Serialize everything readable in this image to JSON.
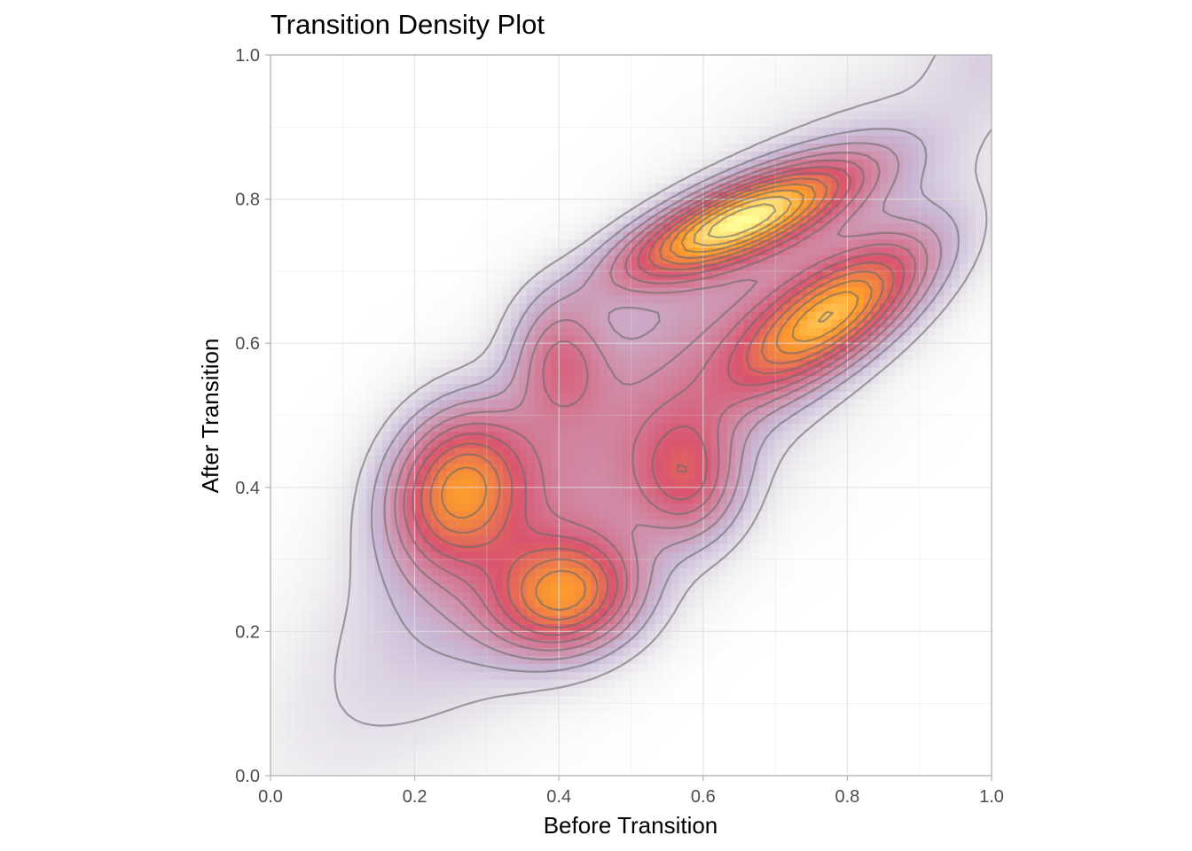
{
  "chart_data": {
    "type": "heatmap",
    "subtype": "2d-density-with-contours",
    "title": "Transition Density Plot",
    "xlabel": "Before Transition",
    "ylabel": "After Transition",
    "xlim": [
      0,
      1
    ],
    "ylim": [
      0,
      1
    ],
    "xticks": [
      "0.0",
      "0.2",
      "0.4",
      "0.6",
      "0.8",
      "1.0"
    ],
    "yticks": [
      "0.0",
      "0.2",
      "0.4",
      "0.6",
      "0.8",
      "1.0"
    ],
    "grid": true,
    "legend": "none",
    "colors": {
      "low": "#f2f2f2",
      "low_mid": "#c9b9d6",
      "mid": "#d9546e",
      "high": "#ff9f2a",
      "peak": "#ffff99",
      "contour": "#6b6b6b",
      "grid": "#dedede",
      "panel_border": "#b3b3b3"
    },
    "density_peaks": [
      {
        "x": 0.65,
        "y": 0.77,
        "sx": 0.11,
        "sy": 0.055,
        "rho": 0.75,
        "weight": 1.0
      },
      {
        "x": 0.78,
        "y": 0.64,
        "sx": 0.09,
        "sy": 0.07,
        "rho": 0.7,
        "weight": 0.8
      },
      {
        "x": 0.26,
        "y": 0.4,
        "sx": 0.065,
        "sy": 0.075,
        "rho": 0.15,
        "weight": 0.72
      },
      {
        "x": 0.41,
        "y": 0.25,
        "sx": 0.07,
        "sy": 0.055,
        "rho": 0.1,
        "weight": 0.7
      },
      {
        "x": 0.4,
        "y": 0.58,
        "sx": 0.045,
        "sy": 0.06,
        "rho": 0.0,
        "weight": 0.35
      },
      {
        "x": 0.58,
        "y": 0.41,
        "sx": 0.05,
        "sy": 0.06,
        "rho": 0.0,
        "weight": 0.4
      },
      {
        "x": 0.52,
        "y": 0.5,
        "sx": 0.26,
        "sy": 0.26,
        "rho": 0.85,
        "weight": 0.35
      },
      {
        "x": 1.0,
        "y": 1.0,
        "sx": 0.06,
        "sy": 0.06,
        "rho": 0.0,
        "weight": 0.08
      }
    ],
    "contour_count": 12
  }
}
